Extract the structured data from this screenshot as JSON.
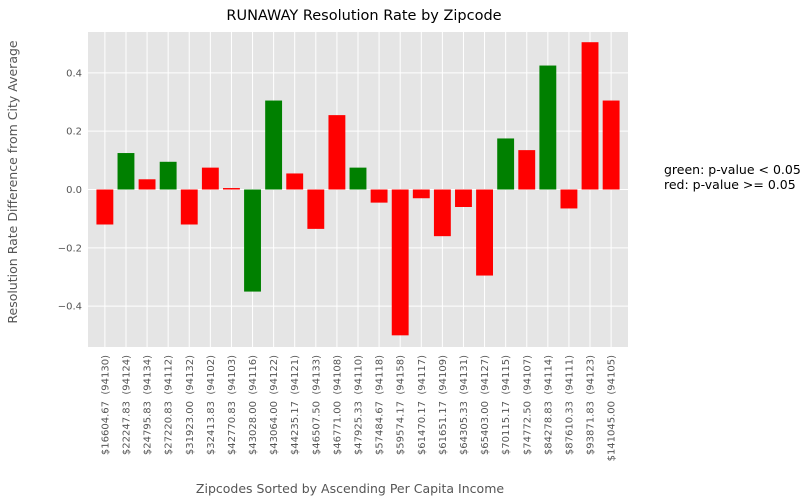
{
  "chart_data": {
    "type": "bar",
    "title": "RUNAWAY Resolution Rate by Zipcode",
    "xlabel": "Zipcodes Sorted by Ascending Per Capita Income",
    "ylabel": "Resolution Rate Difference from City Average",
    "ylim": [
      -0.54,
      0.54
    ],
    "yticks": [
      -0.4,
      -0.2,
      0.0,
      0.2,
      0.4
    ],
    "ytick_labels": [
      "−0.4",
      "−0.2",
      "0.0",
      "0.2",
      "0.4"
    ],
    "grid": true,
    "categories": [
      "$16604.67  (94130)",
      "$22247.83  (94124)",
      "$24795.83  (94134)",
      "$27220.83  (94112)",
      "$31923.00  (94132)",
      "$32413.83  (94102)",
      "$42770.83  (94103)",
      "$43028.00  (94116)",
      "$43064.00  (94122)",
      "$44235.17  (94121)",
      "$46507.50  (94133)",
      "$46771.00  (94108)",
      "$47925.33  (94110)",
      "$57484.67  (94118)",
      "$59574.17  (94158)",
      "$61470.17  (94117)",
      "$61651.17  (94109)",
      "$64305.33  (94131)",
      "$65403.00  (94127)",
      "$70115.17  (94115)",
      "$74772.50  (94107)",
      "$84278.83  (94114)",
      "$87610.33  (94111)",
      "$93871.83  (94123)",
      "$141045.00  (94105)"
    ],
    "values": [
      -0.12,
      0.125,
      0.035,
      0.095,
      -0.12,
      0.075,
      0.005,
      -0.35,
      0.305,
      0.055,
      -0.135,
      0.255,
      0.075,
      -0.045,
      -0.5,
      -0.03,
      -0.16,
      -0.06,
      -0.295,
      0.175,
      0.135,
      0.425,
      -0.065,
      0.505,
      0.305
    ],
    "significant": [
      false,
      true,
      false,
      true,
      false,
      false,
      false,
      true,
      true,
      false,
      false,
      false,
      true,
      false,
      false,
      false,
      false,
      false,
      false,
      true,
      false,
      true,
      false,
      false,
      false
    ],
    "colors": {
      "significant": "#008000",
      "not_significant": "#ff0000",
      "plot_bg": "#e5e5e5",
      "grid": "#ffffff",
      "text": "#555555"
    }
  },
  "legend_note": {
    "line1": "green: p-value < 0.05",
    "line2": "red: p-value >= 0.05"
  }
}
